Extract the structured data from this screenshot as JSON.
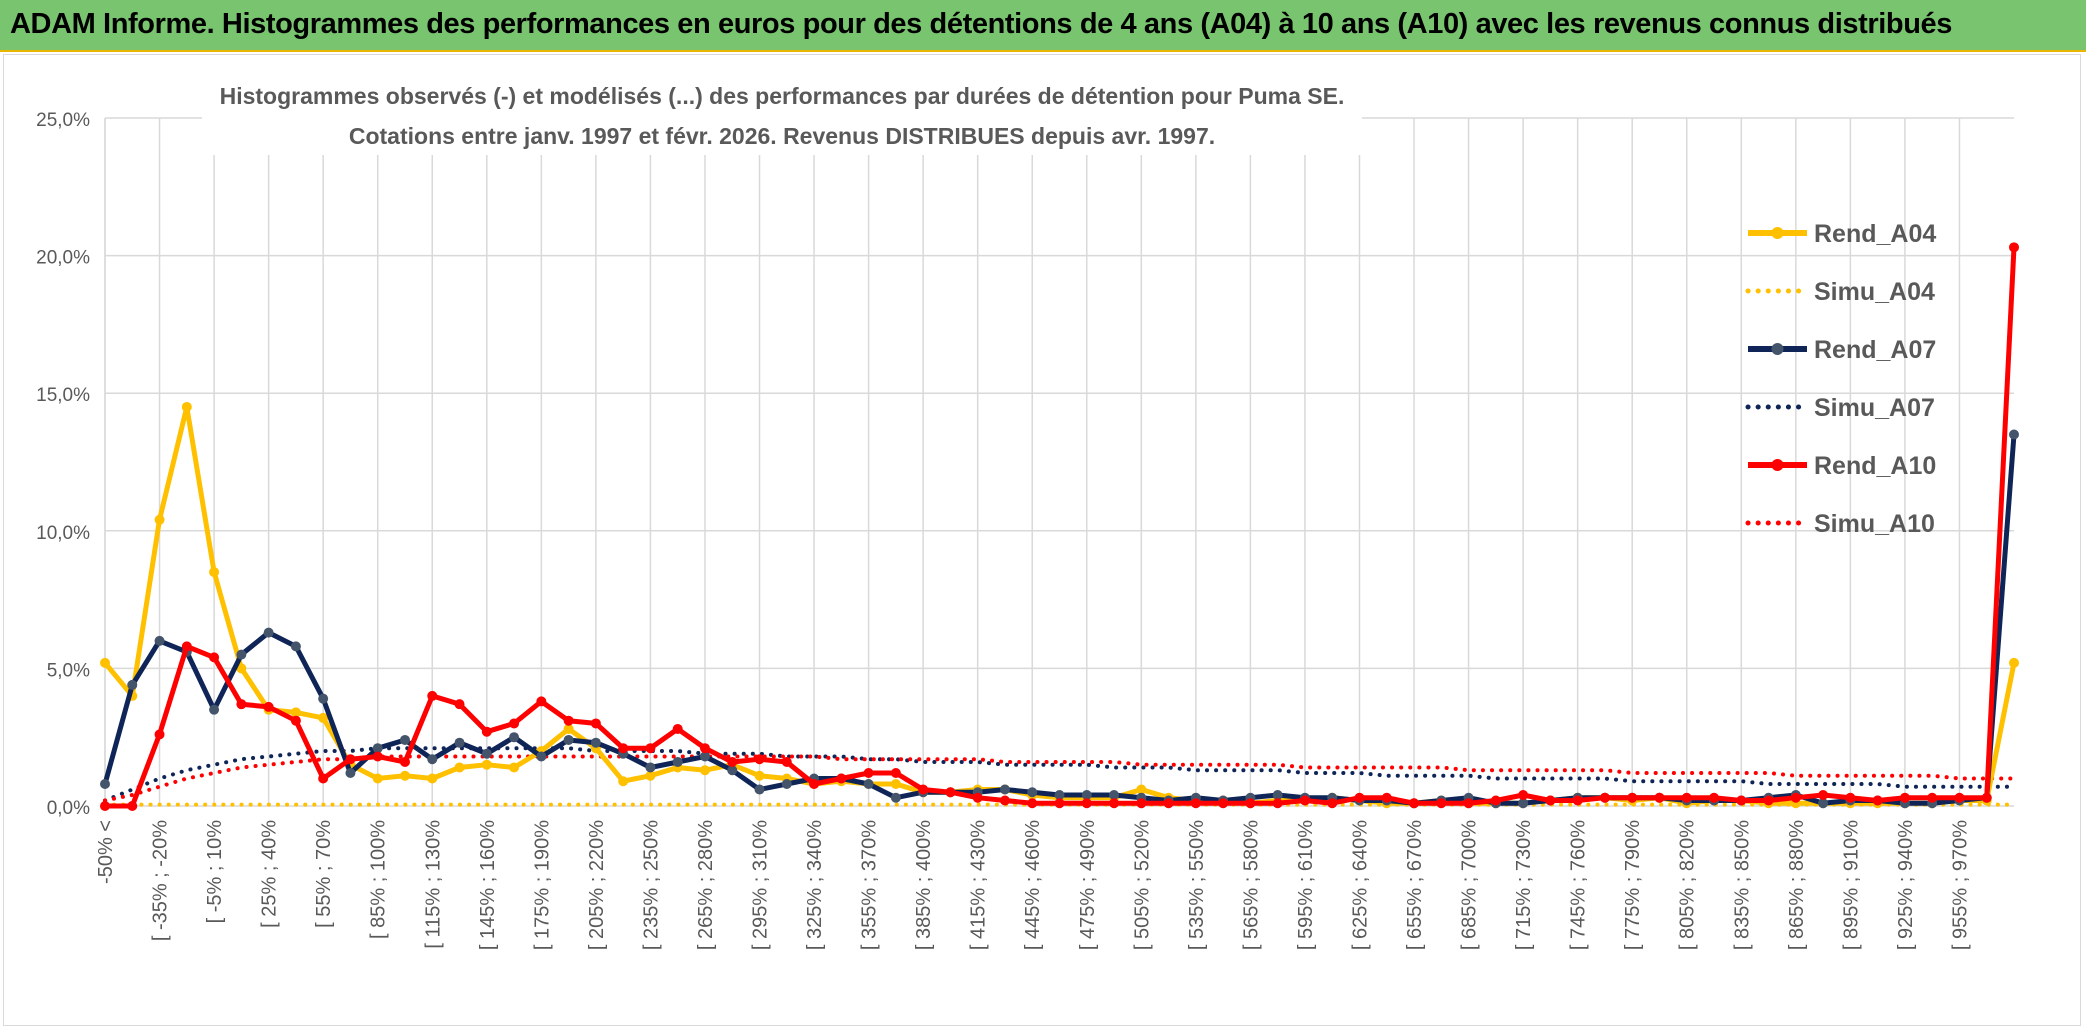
{
  "banner": {
    "title": "ADAM Informe. Histogrammes des performances en euros pour des détentions de 4 ans (A04) à 10 ans (A10) avec les revenus connus distribués"
  },
  "colors": {
    "banner_bg": "#79c46f",
    "banner_border": "#e9b700",
    "A04": "#ffc000",
    "A07": "#0f2557",
    "A07_marker": "#44546a",
    "A10": "#ff0000",
    "grid": "#d9d9d9"
  },
  "chart_data": {
    "type": "line",
    "title": "Histogrammes observés (-) et modélisés (...) des performances par durées de détention pour Puma SE.",
    "subtitle": "Cotations entre janv. 1997 et févr. 2026. Revenus DISTRIBUES depuis avr. 1997.",
    "ylim": [
      0,
      25
    ],
    "y_ticks": [
      "0,0%",
      "5,0%",
      "10,0%",
      "15,0%",
      "20,0%",
      "25,0%"
    ],
    "grid": "vertical and horizontal",
    "legend_position": "right",
    "x_tick_labels": [
      "-50% <",
      "[ -35% ; -20%",
      "[ -5% ; 10%",
      "[ 25% ; 40%",
      "[ 55% ; 70%",
      "[ 85% ; 100%",
      "[ 115% ; 130%",
      "[ 145% ; 160%",
      "[ 175% ; 190%",
      "[ 205% ; 220%",
      "[ 235% ; 250%",
      "[ 265% ; 280%",
      "[ 295% ; 310%",
      "[ 325% ; 340%",
      "[ 355% ; 370%",
      "[ 385% ; 400%",
      "[ 415% ; 430%",
      "[ 445% ; 460%",
      "[ 475% ; 490%",
      "[ 505% ; 520%",
      "[ 535% ; 550%",
      "[ 565% ; 580%",
      "[ 595% ; 610%",
      "[ 625% ; 640%",
      "[ 655% ; 670%",
      "[ 685% ; 700%",
      "[ 715% ; 730%",
      "[ 745% ; 760%",
      "[ 775% ; 790%",
      "[ 805% ; 820%",
      "[ 835% ; 850%",
      "[ 865% ; 880%",
      "[ 895% ; 910%",
      "[ 925% ; 940%",
      "[ 955% ; 970%"
    ],
    "series": [
      {
        "name": "Rend_A04",
        "style": "solid",
        "values": [
          5.2,
          4.0,
          10.4,
          14.5,
          8.5,
          5.0,
          3.5,
          3.4,
          3.2,
          1.5,
          1.0,
          1.1,
          1.0,
          1.4,
          1.5,
          1.4,
          2.0,
          2.8,
          2.1,
          0.9,
          1.1,
          1.4,
          1.3,
          1.5,
          1.1,
          1.0,
          0.8,
          0.9,
          0.8,
          0.8,
          0.5,
          0.5,
          0.6,
          0.6,
          0.4,
          0.3,
          0.3,
          0.3,
          0.6,
          0.3,
          0.2,
          0.2,
          0.1,
          0.2,
          0.2,
          0.3,
          0.2,
          0.1,
          0.1,
          0.2,
          0.1,
          0.1,
          0.1,
          0.2,
          0.3,
          0.3,
          0.2,
          0.3,
          0.1,
          0.2,
          0.2,
          0.1,
          0.1,
          0.1,
          0.1,
          0.1,
          0.1,
          0.1,
          0.2,
          0.2,
          5.2
        ]
      },
      {
        "name": "Simu_A04",
        "style": "dotted",
        "values": [
          0.05,
          0.05,
          0.05,
          0.05,
          0.05,
          0.05,
          0.05,
          0.05,
          0.05,
          0.05,
          0.05,
          0.05,
          0.05,
          0.05,
          0.05,
          0.05,
          0.05,
          0.05,
          0.05,
          0.05,
          0.05,
          0.05,
          0.05,
          0.05,
          0.05,
          0.05,
          0.05,
          0.05,
          0.05,
          0.05,
          0.05,
          0.05,
          0.05,
          0.05,
          0.05,
          0.05,
          0.05,
          0.05,
          0.05,
          0.05,
          0.05,
          0.05,
          0.05,
          0.05,
          0.05,
          0.05,
          0.05,
          0.05,
          0.05,
          0.05,
          0.05,
          0.05,
          0.05,
          0.05,
          0.05,
          0.05,
          0.05,
          0.05,
          0.05,
          0.05,
          0.05,
          0.05,
          0.05,
          0.05,
          0.05,
          0.05,
          0.05,
          0.05,
          0.05,
          0.05,
          0.05
        ]
      },
      {
        "name": "Rend_A07",
        "style": "solid",
        "values": [
          0.8,
          4.4,
          6.0,
          5.6,
          3.5,
          5.5,
          6.3,
          5.8,
          3.9,
          1.2,
          2.1,
          2.4,
          1.7,
          2.3,
          1.9,
          2.5,
          1.8,
          2.4,
          2.3,
          1.9,
          1.4,
          1.6,
          1.8,
          1.3,
          0.6,
          0.8,
          1.0,
          1.0,
          0.8,
          0.3,
          0.5,
          0.5,
          0.5,
          0.6,
          0.5,
          0.4,
          0.4,
          0.4,
          0.3,
          0.2,
          0.3,
          0.2,
          0.3,
          0.4,
          0.3,
          0.3,
          0.2,
          0.2,
          0.1,
          0.2,
          0.3,
          0.1,
          0.1,
          0.2,
          0.3,
          0.3,
          0.3,
          0.3,
          0.2,
          0.2,
          0.2,
          0.3,
          0.4,
          0.1,
          0.2,
          0.2,
          0.1,
          0.1,
          0.2,
          0.3,
          13.5
        ]
      },
      {
        "name": "Simu_A07",
        "style": "dotted",
        "values": [
          0.2,
          0.6,
          1.0,
          1.3,
          1.5,
          1.7,
          1.8,
          1.9,
          2.0,
          2.0,
          2.1,
          2.1,
          2.1,
          2.1,
          2.1,
          2.1,
          2.1,
          2.1,
          2.0,
          2.0,
          2.0,
          2.0,
          1.9,
          1.9,
          1.9,
          1.8,
          1.8,
          1.8,
          1.7,
          1.7,
          1.6,
          1.6,
          1.6,
          1.5,
          1.5,
          1.5,
          1.5,
          1.4,
          1.4,
          1.4,
          1.3,
          1.3,
          1.3,
          1.3,
          1.2,
          1.2,
          1.2,
          1.1,
          1.1,
          1.1,
          1.1,
          1.0,
          1.0,
          1.0,
          1.0,
          1.0,
          0.9,
          0.9,
          0.9,
          0.9,
          0.9,
          0.8,
          0.8,
          0.8,
          0.8,
          0.8,
          0.7,
          0.7,
          0.7,
          0.7,
          0.7
        ]
      },
      {
        "name": "Rend_A10",
        "style": "solid",
        "values": [
          0.0,
          0.0,
          2.6,
          5.8,
          5.4,
          3.7,
          3.6,
          3.1,
          1.0,
          1.7,
          1.8,
          1.6,
          4.0,
          3.7,
          2.7,
          3.0,
          3.8,
          3.1,
          3.0,
          2.1,
          2.1,
          2.8,
          2.1,
          1.6,
          1.7,
          1.6,
          0.8,
          1.0,
          1.2,
          1.2,
          0.6,
          0.5,
          0.3,
          0.2,
          0.1,
          0.1,
          0.1,
          0.1,
          0.1,
          0.1,
          0.1,
          0.1,
          0.1,
          0.1,
          0.2,
          0.1,
          0.3,
          0.3,
          0.1,
          0.1,
          0.1,
          0.2,
          0.4,
          0.2,
          0.2,
          0.3,
          0.3,
          0.3,
          0.3,
          0.3,
          0.2,
          0.2,
          0.3,
          0.4,
          0.3,
          0.2,
          0.3,
          0.3,
          0.3,
          0.3,
          20.3
        ]
      },
      {
        "name": "Simu_A10",
        "style": "dotted",
        "values": [
          0.2,
          0.4,
          0.7,
          1.0,
          1.2,
          1.4,
          1.5,
          1.6,
          1.7,
          1.7,
          1.8,
          1.8,
          1.8,
          1.8,
          1.8,
          1.8,
          1.8,
          1.8,
          1.8,
          1.8,
          1.8,
          1.8,
          1.8,
          1.8,
          1.8,
          1.8,
          1.8,
          1.7,
          1.7,
          1.7,
          1.7,
          1.7,
          1.7,
          1.6,
          1.6,
          1.6,
          1.6,
          1.6,
          1.5,
          1.5,
          1.5,
          1.5,
          1.5,
          1.5,
          1.4,
          1.4,
          1.4,
          1.4,
          1.4,
          1.4,
          1.3,
          1.3,
          1.3,
          1.3,
          1.3,
          1.3,
          1.2,
          1.2,
          1.2,
          1.2,
          1.2,
          1.2,
          1.1,
          1.1,
          1.1,
          1.1,
          1.1,
          1.1,
          1.0,
          1.0,
          1.0
        ]
      }
    ]
  }
}
